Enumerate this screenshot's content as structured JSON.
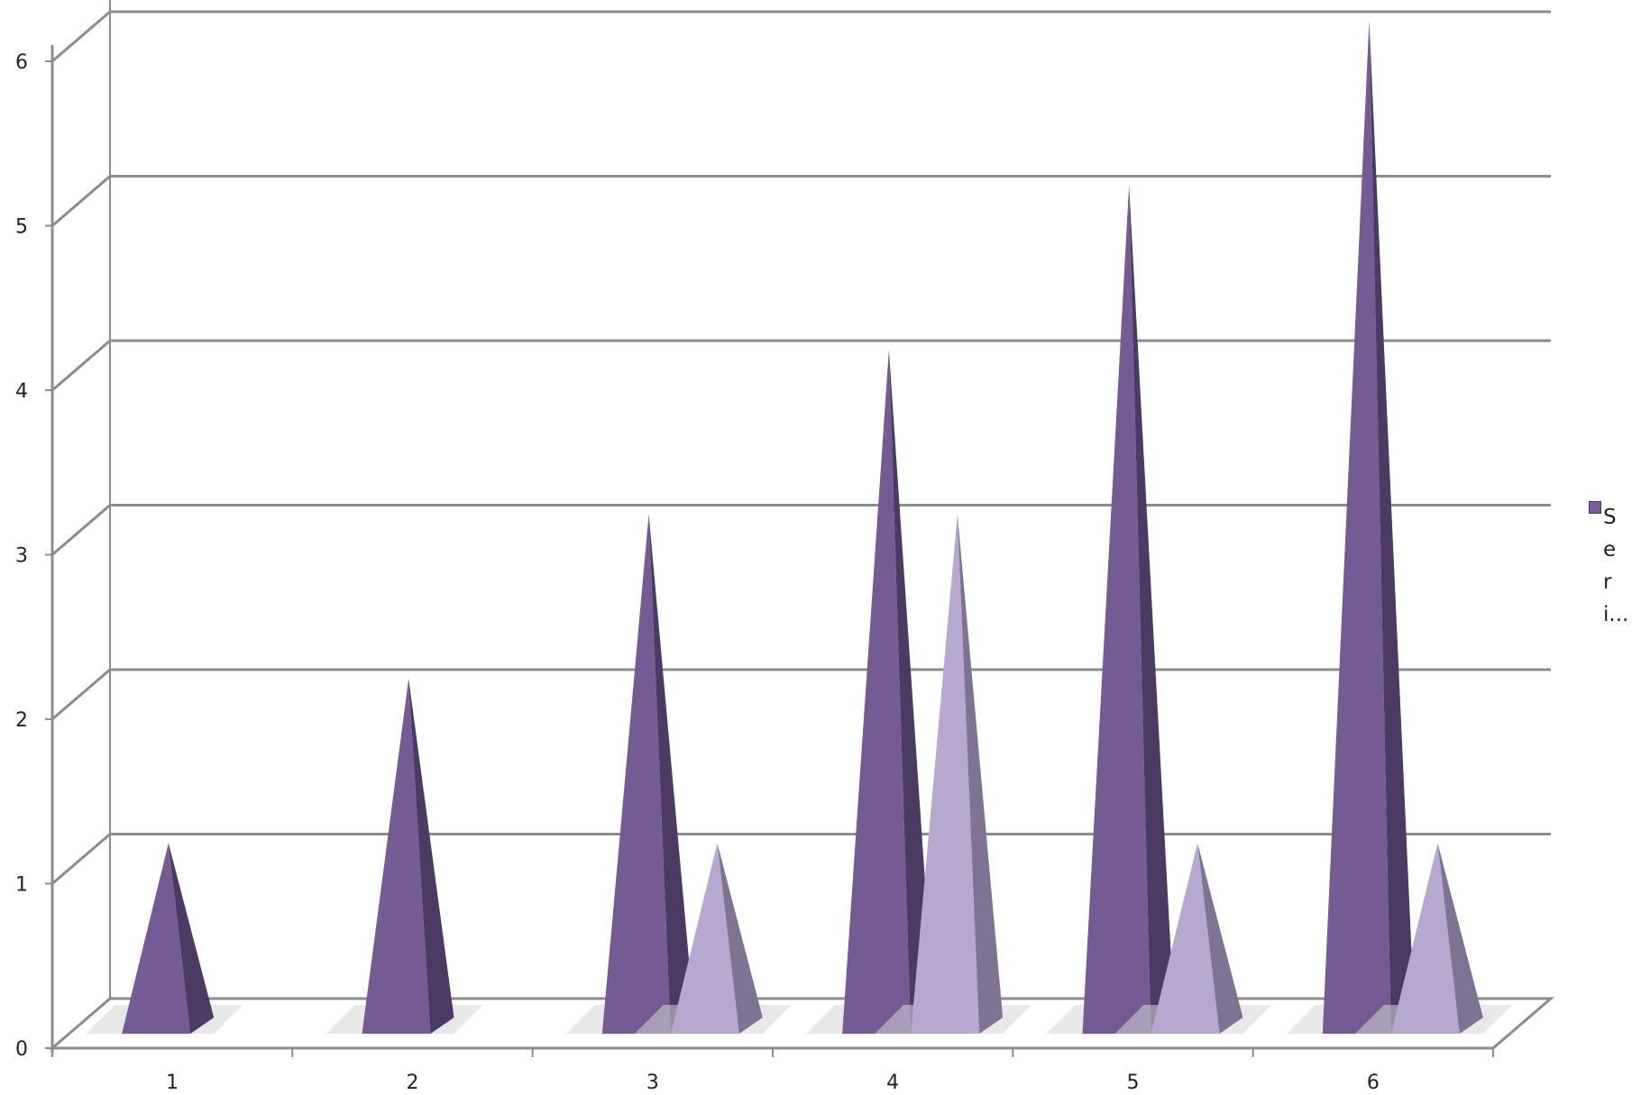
{
  "chart_data": {
    "type": "bar",
    "shape": "3d-pyramid",
    "title": "",
    "xlabel": "",
    "ylabel": "",
    "categories": [
      "1",
      "2",
      "3",
      "4",
      "5",
      "6"
    ],
    "ylim": [
      0,
      6
    ],
    "yticks": [
      0,
      1,
      2,
      3,
      4,
      5,
      6
    ],
    "grid": true,
    "legend_position": "right",
    "series": [
      {
        "values": [
          1,
          2,
          3,
          4,
          5,
          6
        ],
        "color": "#745b93",
        "dark": "#4b3a62"
      },
      {
        "values": [
          0,
          0,
          1,
          3,
          1,
          1
        ],
        "color": "#b7a8cf",
        "dark": "#7e7393"
      }
    ]
  },
  "legend": {
    "label": "Seri...",
    "color": "#7a5e9c"
  }
}
